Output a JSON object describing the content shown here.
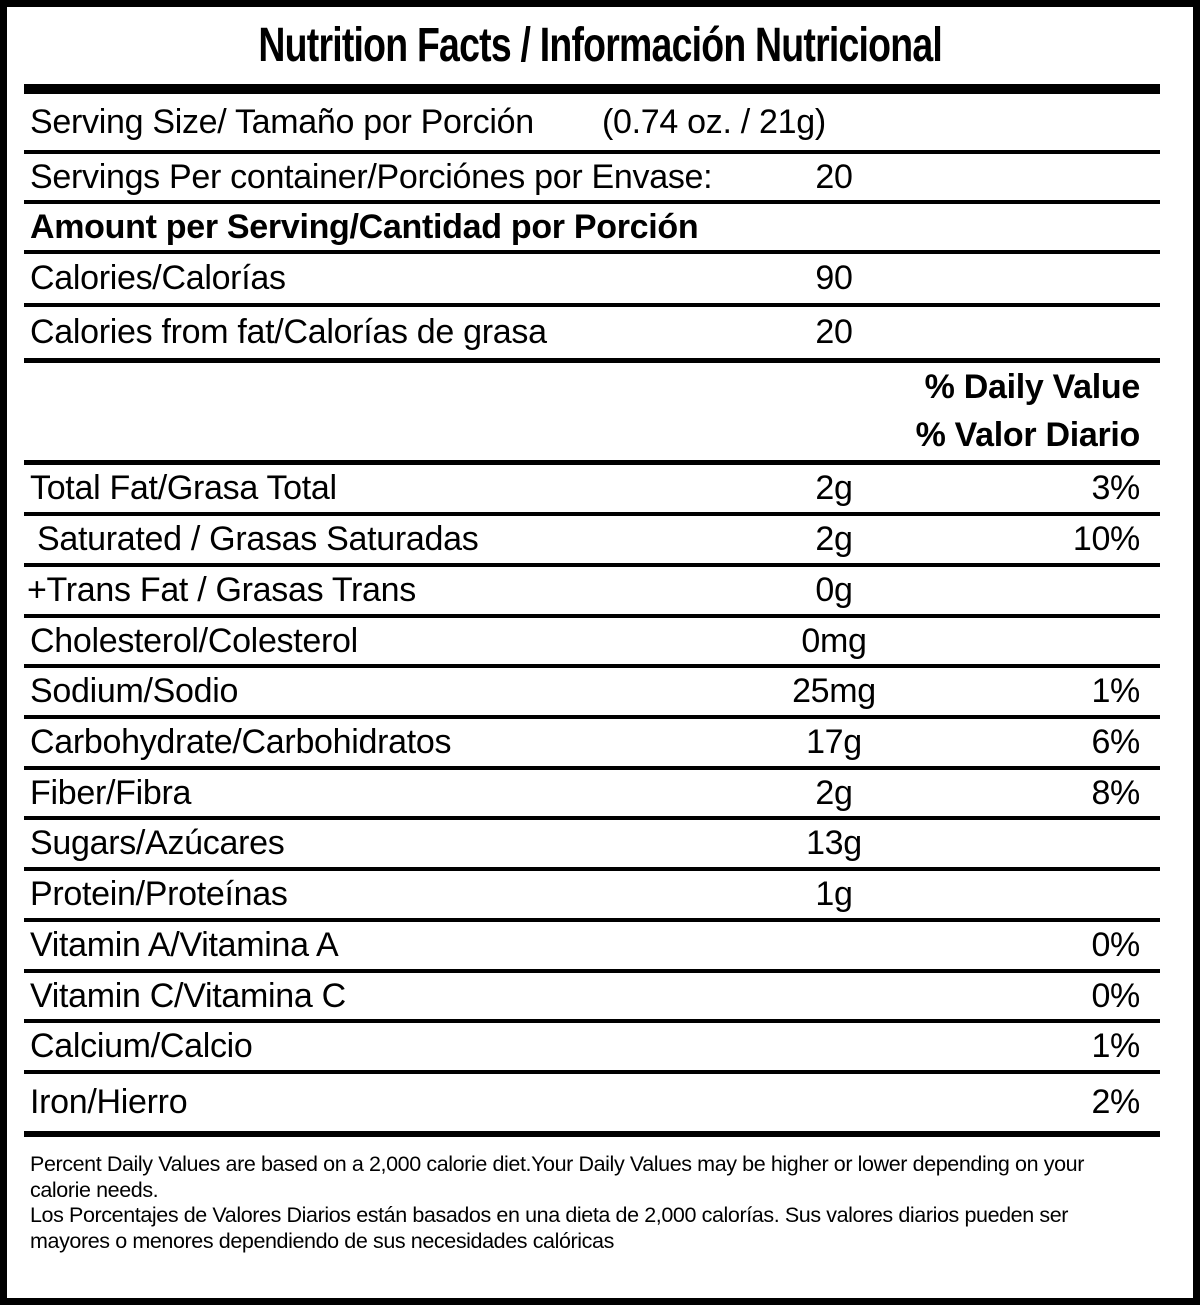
{
  "label": {
    "title": "Nutrition Facts / Información Nutricional",
    "serving_size": {
      "label": "Serving Size/ Tamaño por Porción",
      "value": "(0.74 oz. / 21g)"
    },
    "servings_per_container": {
      "label": "Servings Per container/Porciónes por Envase:",
      "value": "20"
    },
    "amount_per_serving_header": "Amount per Serving/Cantidad por Porción",
    "calories": {
      "label": "Calories/Calorías",
      "value": "90"
    },
    "calories_from_fat": {
      "label": "Calories from fat/Calorías de grasa",
      "value": "20"
    },
    "daily_value_header": {
      "en": "% Daily Value",
      "es": "% Valor Diario"
    },
    "nutrients": [
      {
        "label": "Total Fat/Grasa Total",
        "amount": "2g",
        "dv": "3%"
      },
      {
        "label": "Saturated / Grasas Saturadas",
        "amount": "2g",
        "dv": "10%"
      },
      {
        "label": "+Trans Fat / Grasas Trans",
        "amount": "0g",
        "dv": ""
      },
      {
        "label": "Cholesterol/Colesterol",
        "amount": "0mg",
        "dv": ""
      },
      {
        "label": "Sodium/Sodio",
        "amount": "25mg",
        "dv": "1%"
      },
      {
        "label": "Carbohydrate/Carbohidratos",
        "amount": "17g",
        "dv": "6%"
      },
      {
        "label": "Fiber/Fibra",
        "amount": "2g",
        "dv": "8%"
      },
      {
        "label": "Sugars/Azúcares",
        "amount": "13g",
        "dv": ""
      },
      {
        "label": "Protein/Proteínas",
        "amount": "1g",
        "dv": ""
      },
      {
        "label": "Vitamin A/Vitamina A",
        "amount": "",
        "dv": "0%"
      },
      {
        "label": "Vitamin C/Vitamina C",
        "amount": "",
        "dv": "0%"
      },
      {
        "label": "Calcium/Calcio",
        "amount": "",
        "dv": "1%"
      },
      {
        "label": "Iron/Hierro",
        "amount": "",
        "dv": "2%"
      }
    ],
    "footnote_en": "Percent Daily Values are based on a 2,000 calorie diet.Your Daily Values may be higher or lower depending on your calorie needs.",
    "footnote_es": "Los Porcentajes de Valores Diarios están basados en una dieta de 2,000 calorías. Sus valores diarios pueden ser mayores o menores dependiendo de sus necesidades calóricas"
  },
  "colors": {
    "background": "#ffffff",
    "text": "#000000",
    "border": "#000000"
  }
}
